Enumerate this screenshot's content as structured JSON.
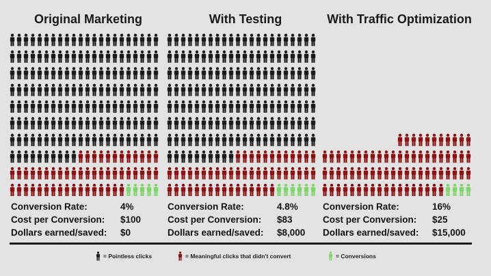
{
  "colors": {
    "pointless": "#1a1a1a",
    "meaningful": "#8b1111",
    "conversion": "#7fd66a"
  },
  "chart_data": {
    "type": "pictogram",
    "unit_per_icon": "click",
    "columns": [
      {
        "title": "Original Marketing",
        "rows": [
          {
            "pointless": 22,
            "meaningful": 0,
            "conversion": 0
          },
          {
            "pointless": 22,
            "meaningful": 0,
            "conversion": 0
          },
          {
            "pointless": 22,
            "meaningful": 0,
            "conversion": 0
          },
          {
            "pointless": 22,
            "meaningful": 0,
            "conversion": 0
          },
          {
            "pointless": 22,
            "meaningful": 0,
            "conversion": 0
          },
          {
            "pointless": 22,
            "meaningful": 0,
            "conversion": 0
          },
          {
            "pointless": 22,
            "meaningful": 0,
            "conversion": 0
          },
          {
            "pointless": 10,
            "meaningful": 12,
            "conversion": 0
          },
          {
            "pointless": 0,
            "meaningful": 22,
            "conversion": 0
          },
          {
            "pointless": 0,
            "meaningful": 17,
            "conversion": 5
          }
        ],
        "stats": [
          {
            "label": "Conversion Rate:",
            "value": "4%"
          },
          {
            "label": "Cost per Conversion:",
            "value": "$100"
          },
          {
            "label": "Dollars earned/saved:",
            "value": "$0"
          }
        ]
      },
      {
        "title": "With Testing",
        "rows": [
          {
            "pointless": 22,
            "meaningful": 0,
            "conversion": 0
          },
          {
            "pointless": 22,
            "meaningful": 0,
            "conversion": 0
          },
          {
            "pointless": 22,
            "meaningful": 0,
            "conversion": 0
          },
          {
            "pointless": 22,
            "meaningful": 0,
            "conversion": 0
          },
          {
            "pointless": 22,
            "meaningful": 0,
            "conversion": 0
          },
          {
            "pointless": 22,
            "meaningful": 0,
            "conversion": 0
          },
          {
            "pointless": 22,
            "meaningful": 0,
            "conversion": 0
          },
          {
            "pointless": 10,
            "meaningful": 12,
            "conversion": 0
          },
          {
            "pointless": 0,
            "meaningful": 22,
            "conversion": 0
          },
          {
            "pointless": 0,
            "meaningful": 16,
            "conversion": 6
          }
        ],
        "stats": [
          {
            "label": "Conversion Rate:",
            "value": "4.8%"
          },
          {
            "label": "Cost per Conversion:",
            "value": "$83"
          },
          {
            "label": "Dollars earned/saved:",
            "value": "$8,000"
          }
        ]
      },
      {
        "title": "With Traffic Optimization",
        "rows": [
          {
            "pointless": 0,
            "meaningful": 11,
            "conversion": 0
          },
          {
            "pointless": 0,
            "meaningful": 22,
            "conversion": 0
          },
          {
            "pointless": 0,
            "meaningful": 22,
            "conversion": 0
          },
          {
            "pointless": 0,
            "meaningful": 18,
            "conversion": 4
          }
        ],
        "stats": [
          {
            "label": "Conversion Rate:",
            "value": "16%"
          },
          {
            "label": "Cost per Conversion:",
            "value": "$25"
          },
          {
            "label": "Dollars earned/saved:",
            "value": "$15,000"
          }
        ]
      }
    ],
    "legend": [
      {
        "key": "pointless",
        "label": "= Pointless clicks"
      },
      {
        "key": "meaningful",
        "label": "= Meaningful clicks that didn't convert"
      },
      {
        "key": "conversion",
        "label": "= Conversions"
      }
    ]
  }
}
